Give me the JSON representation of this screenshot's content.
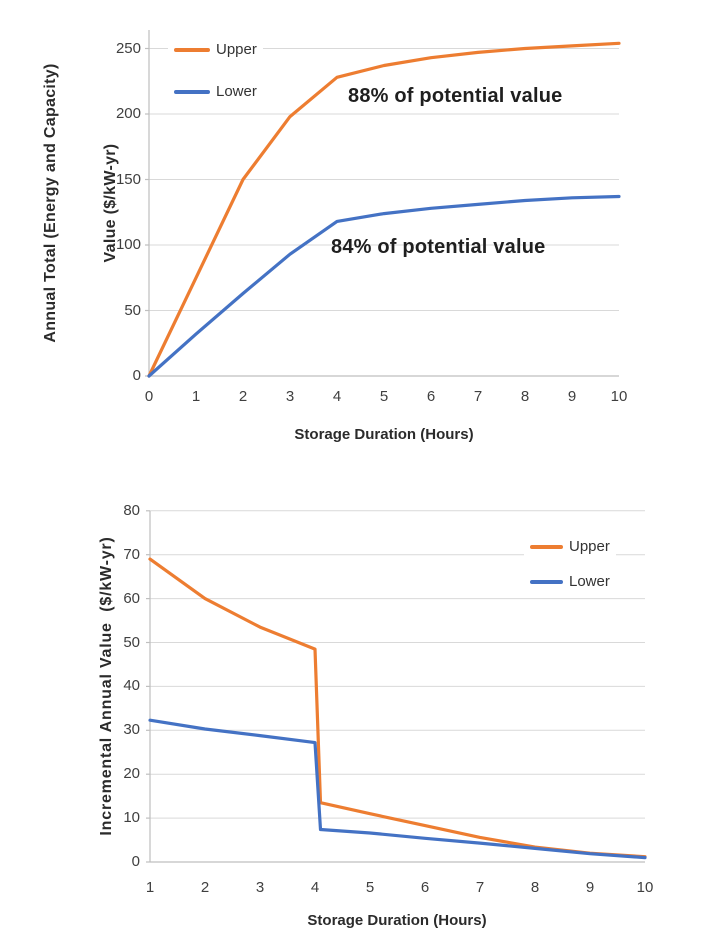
{
  "page": {
    "background_color": "#ffffff",
    "grid_color": "#d9d9d9",
    "axis_color": "#bfbfbf",
    "text_color": "#3f3f3f"
  },
  "chart_data": [
    {
      "type": "line",
      "title": "",
      "ylabel_line1": "Annual Total (Energy and Capacity)",
      "ylabel_line2": "Value ($/kW-yr)",
      "xlabel": "Storage Duration (Hours)",
      "xlim": [
        0,
        10
      ],
      "ylim": [
        0,
        250
      ],
      "xticks": [
        0,
        1,
        2,
        3,
        4,
        5,
        6,
        7,
        8,
        9,
        10
      ],
      "yticks": [
        0,
        50,
        100,
        150,
        200,
        250
      ],
      "grid": "horizontal",
      "legend_position": "top-left-inside",
      "annotations": [
        {
          "text": "88% of potential value",
          "refers_to": "Upper",
          "near_x": 4.2,
          "near_y": 210
        },
        {
          "text": "84% of potential value",
          "refers_to": "Lower",
          "near_x": 3.9,
          "near_y": 97
        }
      ],
      "series": [
        {
          "name": "Upper",
          "color": "#ED7D31",
          "x": [
            0,
            1,
            2,
            3,
            4,
            5,
            6,
            7,
            8,
            9,
            10
          ],
          "y": [
            0,
            75,
            150,
            198,
            228,
            237,
            243,
            247,
            250,
            252,
            254
          ]
        },
        {
          "name": "Lower",
          "color": "#4472C4",
          "x": [
            0,
            1,
            2,
            3,
            4,
            5,
            6,
            7,
            8,
            9,
            10
          ],
          "y": [
            0,
            32,
            63,
            93,
            118,
            124,
            128,
            131,
            134,
            136,
            137
          ]
        }
      ]
    },
    {
      "type": "line",
      "title": "",
      "ylabel_line1": "Incremental Annual Value  ($/kW-yr)",
      "xlabel": "Storage Duration (Hours)",
      "xlim": [
        1,
        10
      ],
      "ylim": [
        0,
        80
      ],
      "xticks": [
        1,
        2,
        3,
        4,
        5,
        6,
        7,
        8,
        9,
        10
      ],
      "yticks": [
        0,
        10,
        20,
        30,
        40,
        50,
        60,
        70,
        80
      ],
      "grid": "horizontal",
      "legend_position": "right-inside",
      "annotations": [],
      "series": [
        {
          "name": "Upper",
          "color": "#ED7D31",
          "x": [
            1,
            2,
            3,
            4,
            4.1,
            5,
            6,
            7,
            8,
            9,
            10
          ],
          "y": [
            69,
            60,
            53.5,
            48.5,
            13.5,
            11,
            8.3,
            5.6,
            3.4,
            2,
            1.2
          ]
        },
        {
          "name": "Lower",
          "color": "#4472C4",
          "x": [
            1,
            2,
            3,
            4,
            4.1,
            5,
            6,
            7,
            8,
            9,
            10
          ],
          "y": [
            32.3,
            30.3,
            28.8,
            27.2,
            7.4,
            6.6,
            5.4,
            4.3,
            3.1,
            1.9,
            1
          ]
        }
      ]
    }
  ]
}
